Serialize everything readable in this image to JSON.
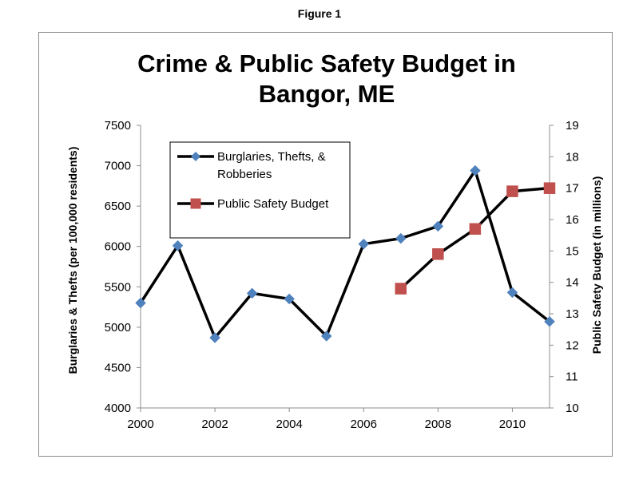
{
  "figure_label": "Figure 1",
  "chart_data": {
    "type": "line",
    "title_lines": [
      "Crime & Public Safety Budget in",
      "Bangor, ME"
    ],
    "xlabel": "",
    "ylabel_left": "Burglaries & Thefts (per 100,000 residents)",
    "ylabel_right": "Public Safety Budget (in millions)",
    "xlim": [
      2000,
      2011
    ],
    "ylim_left": [
      4000,
      7500
    ],
    "ylim_right": [
      10,
      19
    ],
    "x_ticks": [
      "2000",
      "2002",
      "2004",
      "2006",
      "2008",
      "2010"
    ],
    "y_left_ticks": [
      "4000",
      "4500",
      "5000",
      "5500",
      "6000",
      "6500",
      "7000",
      "7500"
    ],
    "y_right_ticks": [
      "10",
      "11",
      "12",
      "13",
      "14",
      "15",
      "16",
      "17",
      "18",
      "19"
    ],
    "grid": false,
    "legend_position": "top-left",
    "series": [
      {
        "name": "Burglaries, Thefts, & Robberies",
        "legend_lines": [
          "Burglaries, Thefts, &",
          "Robberies"
        ],
        "axis": "left",
        "marker": "diamond",
        "marker_color": "#4f81bd",
        "line_color": "#000000",
        "x": [
          2000,
          2001,
          2002,
          2003,
          2004,
          2005,
          2006,
          2007,
          2008,
          2009,
          2010,
          2011
        ],
        "values": [
          5300,
          6010,
          4870,
          5420,
          5350,
          4890,
          6030,
          6100,
          6250,
          6940,
          5430,
          5070
        ]
      },
      {
        "name": "Public Safety Budget",
        "legend_lines": [
          "Public Safety Budget"
        ],
        "axis": "right",
        "marker": "square",
        "marker_color": "#c0504d",
        "line_color": "#000000",
        "x": [
          2007,
          2008,
          2009,
          2010,
          2011
        ],
        "values": [
          13.8,
          14.9,
          15.7,
          16.9,
          17.0
        ]
      }
    ]
  }
}
